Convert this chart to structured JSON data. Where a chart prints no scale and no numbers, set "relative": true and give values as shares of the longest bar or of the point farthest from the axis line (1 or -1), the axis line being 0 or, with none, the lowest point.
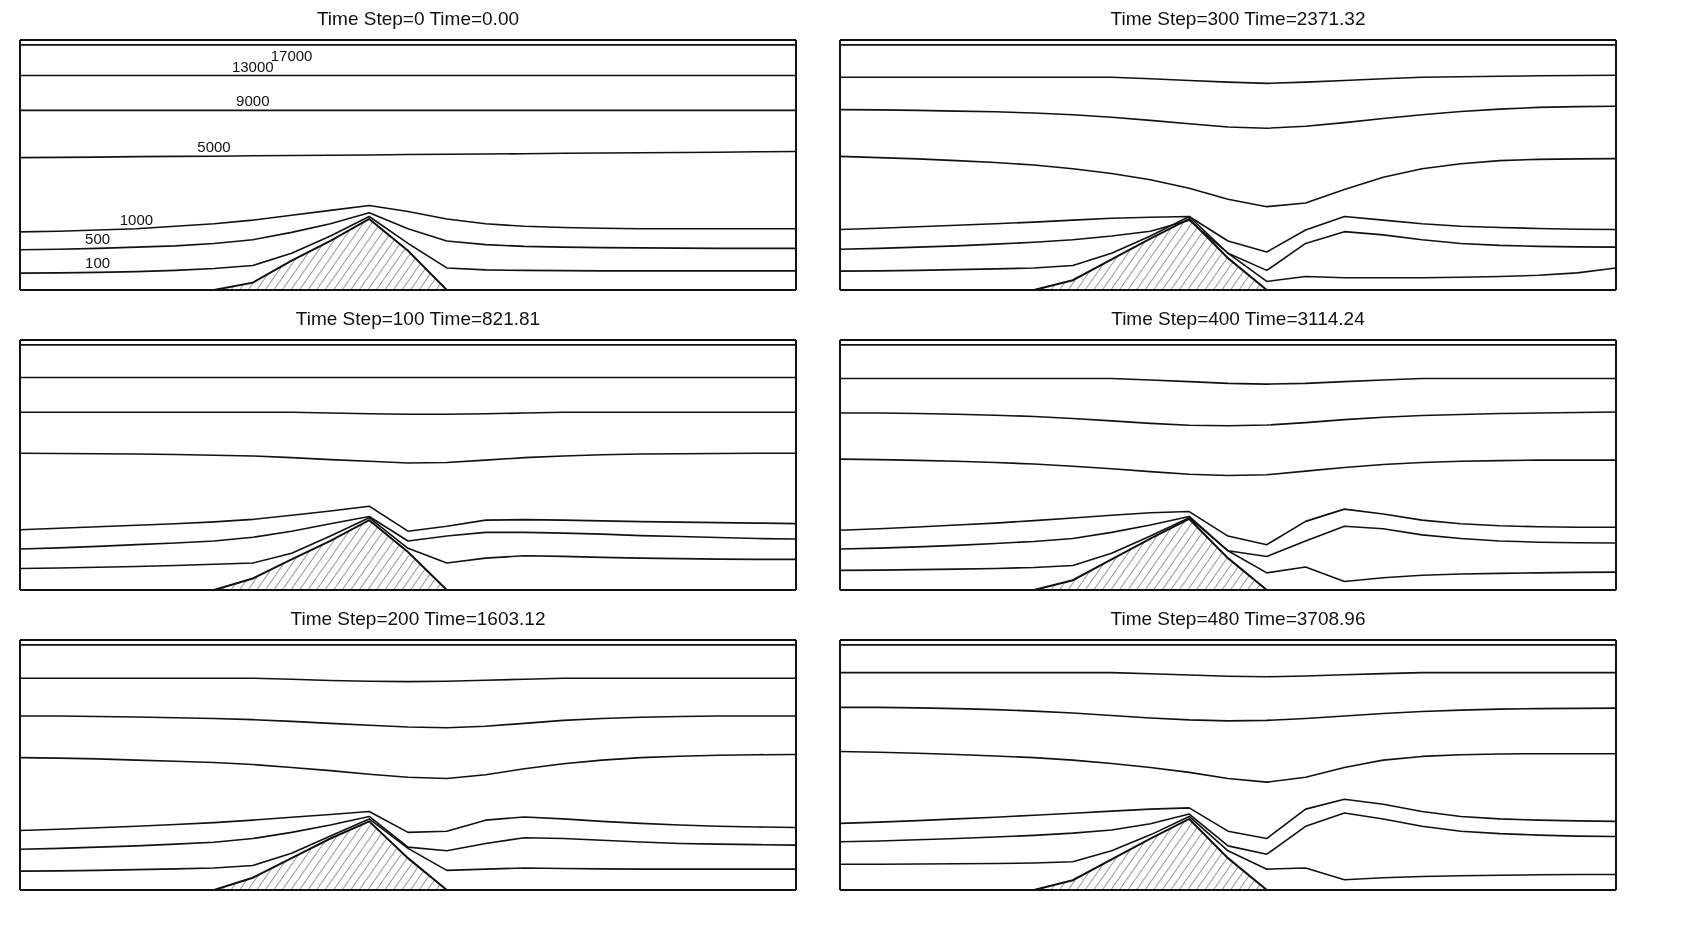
{
  "chart_data": [
    {
      "type": "line",
      "title": "Time Step=0  Time=0.00",
      "relative": true,
      "marker": "none",
      "line_style": "solid",
      "categories": [
        null,
        null,
        null,
        null,
        null,
        null,
        null,
        null,
        null,
        null,
        null,
        null,
        null,
        null,
        null,
        null,
        null,
        null,
        null,
        null,
        null
      ],
      "series": [
        {
          "name": "17000",
          "color": "#111111",
          "values": [
            1,
            1,
            1,
            1,
            1,
            1,
            1,
            1,
            1,
            1,
            1,
            1,
            1,
            1,
            1,
            1,
            1,
            1,
            1,
            1,
            1
          ]
        },
        {
          "name": "13000",
          "color": "#111111",
          "values": [
            0.875,
            0.875,
            0.875,
            0.875,
            0.875,
            0.875,
            0.875,
            0.875,
            0.875,
            0.875,
            0.875,
            0.875,
            0.875,
            0.875,
            0.875,
            0.875,
            0.875,
            0.875,
            0.875,
            0.875,
            0.875
          ]
        },
        {
          "name": "9000",
          "color": "#111111",
          "values": [
            0.733,
            0.733,
            0.733,
            0.733,
            0.733,
            0.733,
            0.733,
            0.733,
            0.733,
            0.733,
            0.733,
            0.733,
            0.733,
            0.733,
            0.733,
            0.733,
            0.733,
            0.733,
            0.733,
            0.733,
            0.733
          ]
        },
        {
          "name": "5000",
          "color": "#111111",
          "values": [
            0.54,
            0.541,
            0.542,
            0.544,
            0.545,
            0.546,
            0.548,
            0.549,
            0.55,
            0.551,
            0.553,
            0.554,
            0.555,
            0.556,
            0.558,
            0.559,
            0.56,
            0.561,
            0.562,
            0.564,
            0.565
          ]
        },
        {
          "name": "1000",
          "color": "#111111",
          "values": [
            0.237,
            0.24,
            0.245,
            0.25,
            0.26,
            0.27,
            0.285,
            0.305,
            0.325,
            0.345,
            0.32,
            0.29,
            0.27,
            0.26,
            0.255,
            0.252,
            0.25,
            0.25,
            0.25,
            0.25,
            0.25
          ]
        },
        {
          "name": "500",
          "color": "#111111",
          "values": [
            0.164,
            0.166,
            0.17,
            0.175,
            0.18,
            0.19,
            0.205,
            0.235,
            0.27,
            0.315,
            0.25,
            0.2,
            0.185,
            0.178,
            0.175,
            0.173,
            0.172,
            0.171,
            0.17,
            0.17,
            0.17
          ]
        },
        {
          "name": "100",
          "color": "#111111",
          "values": [
            0.069,
            0.07,
            0.072,
            0.075,
            0.08,
            0.088,
            0.1,
            0.15,
            0.22,
            0.3,
            0.19,
            0.09,
            0.082,
            0.08,
            0.079,
            0.078,
            0.078,
            0.078,
            0.078,
            0.078,
            0.078
          ]
        },
        {
          "type": "area",
          "color": "#111111",
          "values": [
            0,
            0,
            0,
            0,
            0,
            0,
            0.03,
            0.12,
            0.2,
            0.29,
            0.16,
            0,
            0,
            0,
            0,
            0,
            0,
            0,
            0,
            0,
            0
          ]
        }
      ]
    },
    {
      "type": "line",
      "title": "Time Step=300  Time=2371.32",
      "relative": true,
      "marker": "none",
      "line_style": "solid",
      "categories": [
        null,
        null,
        null,
        null,
        null,
        null,
        null,
        null,
        null,
        null,
        null,
        null,
        null,
        null,
        null,
        null,
        null,
        null,
        null,
        null,
        null
      ],
      "series": [
        {
          "color": "#111111",
          "values": [
            1,
            1,
            1,
            1,
            1,
            1,
            1,
            1,
            1,
            1,
            1,
            1,
            1,
            1,
            1,
            1,
            1,
            1,
            1,
            1,
            1
          ]
        },
        {
          "color": "#111111",
          "values": [
            0.868,
            0.868,
            0.868,
            0.868,
            0.868,
            0.868,
            0.868,
            0.868,
            0.862,
            0.855,
            0.848,
            0.843,
            0.848,
            0.855,
            0.862,
            0.868,
            0.87,
            0.872,
            0.874,
            0.875,
            0.876
          ]
        },
        {
          "color": "#111111",
          "values": [
            0.736,
            0.735,
            0.733,
            0.73,
            0.727,
            0.722,
            0.715,
            0.705,
            0.692,
            0.678,
            0.665,
            0.66,
            0.668,
            0.683,
            0.7,
            0.715,
            0.728,
            0.738,
            0.745,
            0.748,
            0.75
          ]
        },
        {
          "color": "#111111",
          "values": [
            0.545,
            0.54,
            0.535,
            0.528,
            0.52,
            0.51,
            0.495,
            0.475,
            0.45,
            0.415,
            0.37,
            0.34,
            0.355,
            0.41,
            0.46,
            0.495,
            0.515,
            0.528,
            0.533,
            0.535,
            0.536
          ]
        },
        {
          "color": "#111111",
          "values": [
            0.247,
            0.252,
            0.258,
            0.264,
            0.27,
            0.277,
            0.285,
            0.293,
            0.297,
            0.3,
            0.2,
            0.155,
            0.245,
            0.3,
            0.285,
            0.27,
            0.26,
            0.255,
            0.251,
            0.248,
            0.247
          ]
        },
        {
          "color": "#111111",
          "values": [
            0.166,
            0.17,
            0.175,
            0.18,
            0.187,
            0.195,
            0.205,
            0.22,
            0.24,
            0.285,
            0.15,
            0.08,
            0.19,
            0.238,
            0.225,
            0.205,
            0.19,
            0.182,
            0.178,
            0.176,
            0.175
          ]
        },
        {
          "color": "#111111",
          "values": [
            0.077,
            0.078,
            0.08,
            0.083,
            0.086,
            0.09,
            0.1,
            0.15,
            0.22,
            0.3,
            0.15,
            0.035,
            0.055,
            0.05,
            0.05,
            0.05,
            0.052,
            0.055,
            0.06,
            0.07,
            0.09
          ]
        },
        {
          "type": "area",
          "color": "#111111",
          "values": [
            0,
            0,
            0,
            0,
            0,
            0,
            0.04,
            0.125,
            0.21,
            0.29,
            0.13,
            0,
            0,
            0,
            0,
            0,
            0,
            0,
            0,
            0,
            0
          ]
        }
      ]
    },
    {
      "type": "line",
      "title": "Time Step=100  Time=821.81",
      "relative": true,
      "marker": "none",
      "line_style": "solid",
      "categories": [
        null,
        null,
        null,
        null,
        null,
        null,
        null,
        null,
        null,
        null,
        null,
        null,
        null,
        null,
        null,
        null,
        null,
        null,
        null,
        null,
        null
      ],
      "series": [
        {
          "color": "#111111",
          "values": [
            1,
            1,
            1,
            1,
            1,
            1,
            1,
            1,
            1,
            1,
            1,
            1,
            1,
            1,
            1,
            1,
            1,
            1,
            1,
            1,
            1
          ]
        },
        {
          "color": "#111111",
          "values": [
            0.867,
            0.867,
            0.867,
            0.867,
            0.867,
            0.867,
            0.867,
            0.867,
            0.867,
            0.867,
            0.867,
            0.867,
            0.867,
            0.867,
            0.867,
            0.867,
            0.867,
            0.867,
            0.867,
            0.867,
            0.867
          ]
        },
        {
          "color": "#111111",
          "values": [
            0.725,
            0.725,
            0.725,
            0.725,
            0.725,
            0.725,
            0.725,
            0.725,
            0.722,
            0.719,
            0.717,
            0.717,
            0.719,
            0.722,
            0.725,
            0.725,
            0.725,
            0.725,
            0.725,
            0.725,
            0.725
          ]
        },
        {
          "color": "#111111",
          "values": [
            0.558,
            0.557,
            0.556,
            0.555,
            0.553,
            0.55,
            0.547,
            0.54,
            0.532,
            0.525,
            0.518,
            0.52,
            0.53,
            0.54,
            0.547,
            0.552,
            0.555,
            0.556,
            0.557,
            0.558,
            0.558
          ]
        },
        {
          "color": "#111111",
          "values": [
            0.246,
            0.252,
            0.258,
            0.264,
            0.27,
            0.278,
            0.288,
            0.305,
            0.322,
            0.342,
            0.24,
            0.26,
            0.285,
            0.287,
            0.285,
            0.282,
            0.279,
            0.277,
            0.275,
            0.273,
            0.271
          ]
        },
        {
          "color": "#111111",
          "values": [
            0.167,
            0.172,
            0.178,
            0.185,
            0.192,
            0.2,
            0.215,
            0.24,
            0.27,
            0.3,
            0.2,
            0.22,
            0.235,
            0.235,
            0.232,
            0.228,
            0.222,
            0.218,
            0.214,
            0.21,
            0.208
          ]
        },
        {
          "color": "#111111",
          "values": [
            0.088,
            0.09,
            0.093,
            0.096,
            0.1,
            0.105,
            0.11,
            0.15,
            0.22,
            0.295,
            0.17,
            0.11,
            0.13,
            0.14,
            0.137,
            0.133,
            0.13,
            0.128,
            0.126,
            0.125,
            0.125
          ]
        },
        {
          "type": "area",
          "color": "#111111",
          "values": [
            0,
            0,
            0,
            0,
            0,
            0,
            0.047,
            0.125,
            0.2,
            0.285,
            0.155,
            0,
            0,
            0,
            0,
            0,
            0,
            0,
            0,
            0,
            0
          ]
        }
      ]
    },
    {
      "type": "line",
      "title": "Time Step=400  Time=3114.24",
      "relative": true,
      "marker": "none",
      "line_style": "solid",
      "categories": [
        null,
        null,
        null,
        null,
        null,
        null,
        null,
        null,
        null,
        null,
        null,
        null,
        null,
        null,
        null,
        null,
        null,
        null,
        null,
        null,
        null
      ],
      "series": [
        {
          "color": "#111111",
          "values": [
            1,
            1,
            1,
            1,
            1,
            1,
            1,
            1,
            1,
            1,
            1,
            1,
            1,
            1,
            1,
            1,
            1,
            1,
            1,
            1,
            1
          ]
        },
        {
          "color": "#111111",
          "values": [
            0.863,
            0.863,
            0.863,
            0.863,
            0.863,
            0.863,
            0.863,
            0.863,
            0.857,
            0.85,
            0.843,
            0.84,
            0.843,
            0.85,
            0.857,
            0.863,
            0.863,
            0.863,
            0.863,
            0.863,
            0.863
          ]
        },
        {
          "color": "#111111",
          "values": [
            0.722,
            0.722,
            0.72,
            0.717,
            0.713,
            0.708,
            0.7,
            0.69,
            0.68,
            0.672,
            0.67,
            0.673,
            0.683,
            0.695,
            0.705,
            0.712,
            0.716,
            0.72,
            0.722,
            0.724,
            0.726
          ]
        },
        {
          "color": "#111111",
          "values": [
            0.534,
            0.532,
            0.529,
            0.525,
            0.52,
            0.514,
            0.505,
            0.495,
            0.483,
            0.472,
            0.467,
            0.47,
            0.485,
            0.5,
            0.512,
            0.52,
            0.525,
            0.528,
            0.53,
            0.53,
            0.53
          ]
        },
        {
          "color": "#111111",
          "values": [
            0.244,
            0.25,
            0.257,
            0.265,
            0.273,
            0.283,
            0.294,
            0.305,
            0.315,
            0.32,
            0.22,
            0.185,
            0.28,
            0.33,
            0.31,
            0.285,
            0.27,
            0.262,
            0.258,
            0.256,
            0.256
          ]
        },
        {
          "color": "#111111",
          "values": [
            0.167,
            0.171,
            0.176,
            0.182,
            0.19,
            0.198,
            0.21,
            0.235,
            0.265,
            0.3,
            0.16,
            0.137,
            0.2,
            0.26,
            0.25,
            0.225,
            0.21,
            0.2,
            0.195,
            0.193,
            0.192
          ]
        },
        {
          "color": "#111111",
          "values": [
            0.08,
            0.081,
            0.083,
            0.085,
            0.088,
            0.092,
            0.1,
            0.15,
            0.22,
            0.295,
            0.16,
            0.07,
            0.094,
            0.035,
            0.05,
            0.06,
            0.065,
            0.068,
            0.07,
            0.072,
            0.073
          ]
        },
        {
          "type": "area",
          "color": "#111111",
          "values": [
            0,
            0,
            0,
            0,
            0,
            0,
            0.04,
            0.125,
            0.21,
            0.29,
            0.13,
            0,
            0,
            0,
            0,
            0,
            0,
            0,
            0,
            0,
            0
          ]
        }
      ]
    },
    {
      "type": "line",
      "title": "Time Step=200  Time=1603.12",
      "relative": true,
      "marker": "none",
      "line_style": "solid",
      "categories": [
        null,
        null,
        null,
        null,
        null,
        null,
        null,
        null,
        null,
        null,
        null,
        null,
        null,
        null,
        null,
        null,
        null,
        null,
        null,
        null,
        null
      ],
      "series": [
        {
          "color": "#111111",
          "values": [
            1,
            1,
            1,
            1,
            1,
            1,
            1,
            1,
            1,
            1,
            1,
            1,
            1,
            1,
            1,
            1,
            1,
            1,
            1,
            1,
            1
          ]
        },
        {
          "color": "#111111",
          "values": [
            0.864,
            0.864,
            0.864,
            0.864,
            0.864,
            0.864,
            0.864,
            0.86,
            0.855,
            0.852,
            0.85,
            0.852,
            0.856,
            0.86,
            0.864,
            0.864,
            0.864,
            0.864,
            0.864,
            0.864,
            0.864
          ]
        },
        {
          "color": "#111111",
          "values": [
            0.71,
            0.71,
            0.708,
            0.706,
            0.703,
            0.7,
            0.695,
            0.688,
            0.68,
            0.672,
            0.665,
            0.662,
            0.668,
            0.68,
            0.692,
            0.7,
            0.705,
            0.708,
            0.71,
            0.71,
            0.71
          ]
        },
        {
          "color": "#111111",
          "values": [
            0.54,
            0.538,
            0.535,
            0.53,
            0.525,
            0.52,
            0.512,
            0.5,
            0.487,
            0.472,
            0.46,
            0.455,
            0.47,
            0.495,
            0.515,
            0.53,
            0.54,
            0.546,
            0.55,
            0.552,
            0.553
          ]
        },
        {
          "color": "#111111",
          "values": [
            0.243,
            0.248,
            0.254,
            0.26,
            0.267,
            0.275,
            0.285,
            0.297,
            0.308,
            0.32,
            0.235,
            0.24,
            0.285,
            0.298,
            0.29,
            0.28,
            0.272,
            0.265,
            0.26,
            0.257,
            0.255
          ]
        },
        {
          "color": "#111111",
          "values": [
            0.166,
            0.17,
            0.175,
            0.18,
            0.187,
            0.195,
            0.21,
            0.235,
            0.265,
            0.3,
            0.175,
            0.16,
            0.19,
            0.213,
            0.21,
            0.203,
            0.196,
            0.19,
            0.187,
            0.185,
            0.183
          ]
        },
        {
          "color": "#111111",
          "values": [
            0.077,
            0.078,
            0.08,
            0.083,
            0.086,
            0.09,
            0.1,
            0.15,
            0.22,
            0.29,
            0.17,
            0.08,
            0.085,
            0.09,
            0.088,
            0.086,
            0.085,
            0.085,
            0.085,
            0.085,
            0.085
          ]
        },
        {
          "type": "area",
          "color": "#111111",
          "values": [
            0,
            0,
            0,
            0,
            0,
            0,
            0.05,
            0.13,
            0.21,
            0.28,
            0.13,
            0,
            0,
            0,
            0,
            0,
            0,
            0,
            0,
            0,
            0
          ]
        }
      ]
    },
    {
      "type": "line",
      "title": "Time Step=480  Time=3708.96",
      "relative": true,
      "marker": "none",
      "line_style": "solid",
      "categories": [
        null,
        null,
        null,
        null,
        null,
        null,
        null,
        null,
        null,
        null,
        null,
        null,
        null,
        null,
        null,
        null,
        null,
        null,
        null,
        null,
        null
      ],
      "series": [
        {
          "color": "#111111",
          "values": [
            1,
            1,
            1,
            1,
            1,
            1,
            1,
            1,
            1,
            1,
            1,
            1,
            1,
            1,
            1,
            1,
            1,
            1,
            1,
            1,
            1
          ]
        },
        {
          "color": "#111111",
          "values": [
            0.887,
            0.887,
            0.887,
            0.887,
            0.887,
            0.887,
            0.887,
            0.887,
            0.882,
            0.877,
            0.872,
            0.87,
            0.873,
            0.878,
            0.883,
            0.887,
            0.887,
            0.887,
            0.887,
            0.887,
            0.887
          ]
        },
        {
          "color": "#111111",
          "values": [
            0.745,
            0.745,
            0.743,
            0.74,
            0.736,
            0.73,
            0.722,
            0.712,
            0.702,
            0.694,
            0.69,
            0.692,
            0.7,
            0.71,
            0.72,
            0.728,
            0.734,
            0.738,
            0.74,
            0.741,
            0.742
          ]
        },
        {
          "color": "#111111",
          "values": [
            0.565,
            0.562,
            0.558,
            0.553,
            0.547,
            0.54,
            0.53,
            0.516,
            0.5,
            0.48,
            0.455,
            0.44,
            0.46,
            0.5,
            0.53,
            0.545,
            0.552,
            0.555,
            0.556,
            0.556,
            0.556
          ]
        },
        {
          "color": "#111111",
          "values": [
            0.272,
            0.277,
            0.283,
            0.29,
            0.297,
            0.305,
            0.313,
            0.322,
            0.33,
            0.335,
            0.24,
            0.21,
            0.33,
            0.37,
            0.35,
            0.32,
            0.3,
            0.29,
            0.285,
            0.282,
            0.28
          ]
        },
        {
          "color": "#111111",
          "values": [
            0.197,
            0.2,
            0.205,
            0.21,
            0.216,
            0.223,
            0.232,
            0.245,
            0.27,
            0.31,
            0.18,
            0.146,
            0.26,
            0.314,
            0.29,
            0.26,
            0.24,
            0.23,
            0.224,
            0.22,
            0.218
          ]
        },
        {
          "color": "#111111",
          "values": [
            0.105,
            0.105,
            0.106,
            0.107,
            0.108,
            0.11,
            0.115,
            0.16,
            0.225,
            0.3,
            0.16,
            0.085,
            0.09,
            0.042,
            0.05,
            0.055,
            0.058,
            0.06,
            0.062,
            0.063,
            0.063
          ]
        },
        {
          "type": "area",
          "color": "#111111",
          "values": [
            0,
            0,
            0,
            0,
            0,
            0,
            0.04,
            0.125,
            0.21,
            0.29,
            0.13,
            0,
            0,
            0,
            0,
            0,
            0,
            0,
            0,
            0,
            0
          ]
        }
      ]
    }
  ]
}
